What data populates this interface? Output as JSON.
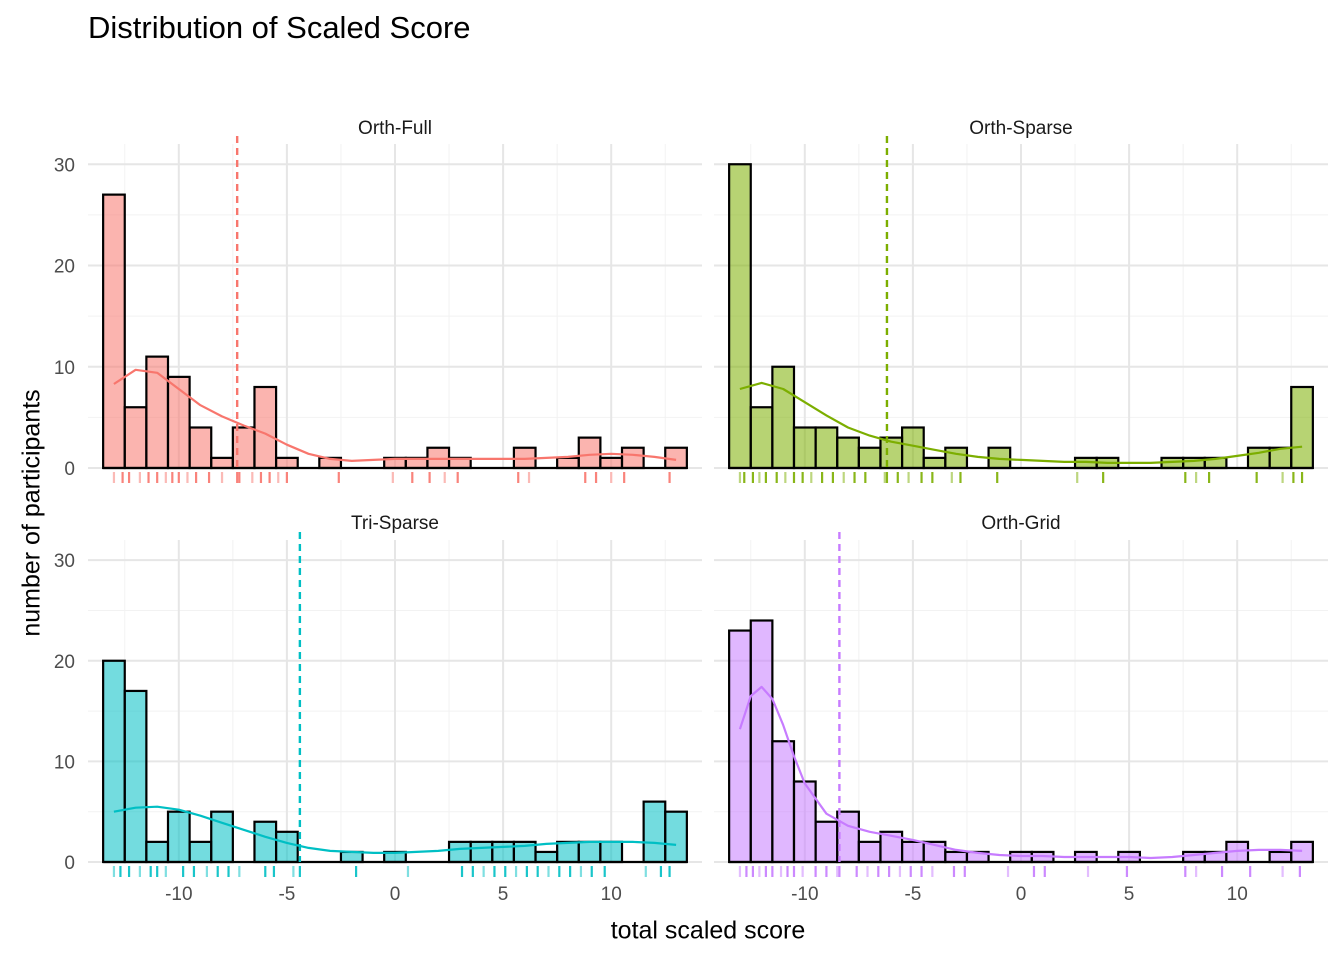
{
  "chart_data": {
    "type": "bar",
    "title": "Distribution of Scaled Score",
    "xlabel": "total scaled score",
    "ylabel": "number of participants",
    "xlim": [
      -14,
      14
    ],
    "ylim": [
      0,
      32
    ],
    "x_ticks": [
      -10,
      -5,
      0,
      5,
      10
    ],
    "x_tick_labels": [
      "-10",
      "-5",
      "0",
      "5",
      "10"
    ],
    "y_ticks": [
      0,
      10,
      20,
      30
    ],
    "y_tick_labels": [
      "0",
      "10",
      "20",
      "30"
    ],
    "bin_centers": [
      -13,
      -12,
      -11,
      -10,
      -9,
      -8,
      -7,
      -6,
      -5,
      -4,
      -3,
      -2,
      -1,
      0,
      1,
      2,
      3,
      4,
      5,
      6,
      7,
      8,
      9,
      10,
      11,
      12,
      13
    ],
    "grid": true,
    "panels": [
      {
        "name": "Orth-Full",
        "color": "#F8766D",
        "mean": -7.3,
        "counts": [
          27,
          6,
          11,
          9,
          4,
          1,
          4,
          8,
          1,
          0,
          1,
          0,
          0,
          1,
          1,
          2,
          1,
          0,
          0,
          2,
          0,
          1,
          3,
          1,
          2,
          0,
          2
        ],
        "density": [
          [
            -13,
            8.3
          ],
          [
            -12,
            9.7
          ],
          [
            -11,
            9.4
          ],
          [
            -10,
            7.8
          ],
          [
            -9,
            6.2
          ],
          [
            -8,
            5.1
          ],
          [
            -7,
            4.2
          ],
          [
            -6,
            3.4
          ],
          [
            -5,
            2.3
          ],
          [
            -4,
            1.4
          ],
          [
            -3,
            0.9
          ],
          [
            -2,
            0.7
          ],
          [
            -1,
            0.8
          ],
          [
            0,
            0.9
          ],
          [
            1,
            0.9
          ],
          [
            2,
            0.9
          ],
          [
            3,
            0.9
          ],
          [
            4,
            0.9
          ],
          [
            5,
            0.9
          ],
          [
            6,
            0.9
          ],
          [
            7,
            1.0
          ],
          [
            8,
            1.1
          ],
          [
            9,
            1.3
          ],
          [
            10,
            1.4
          ],
          [
            11,
            1.3
          ],
          [
            12,
            1.1
          ],
          [
            13,
            0.8
          ]
        ],
        "rug": [
          -13,
          -12.6,
          -12.3,
          -11.8,
          -11.4,
          -11.0,
          -10.6,
          -10.3,
          -10.0,
          -9.6,
          -9.2,
          -8.6,
          -8.0,
          -7.3,
          -7.2,
          -6.6,
          -6.2,
          -5.8,
          -5.4,
          -5.0,
          -2.6,
          -0.1,
          0.8,
          1.6,
          2.3,
          2.9,
          5.7,
          6.2,
          8.8,
          9.3,
          10.0,
          10.6,
          12.7
        ]
      },
      {
        "name": "Orth-Sparse",
        "color": "#7CAE00",
        "mean": -6.2,
        "counts": [
          30,
          6,
          10,
          4,
          4,
          3,
          2,
          3,
          4,
          1,
          2,
          0,
          2,
          0,
          0,
          0,
          1,
          1,
          0,
          0,
          1,
          1,
          1,
          0,
          2,
          2,
          8
        ],
        "density": [
          [
            -13,
            7.8
          ],
          [
            -12,
            8.4
          ],
          [
            -11,
            7.8
          ],
          [
            -10,
            6.5
          ],
          [
            -9,
            5.2
          ],
          [
            -8,
            4.0
          ],
          [
            -7,
            3.2
          ],
          [
            -6,
            2.6
          ],
          [
            -5,
            2.2
          ],
          [
            -4,
            1.8
          ],
          [
            -3,
            1.4
          ],
          [
            -2,
            1.1
          ],
          [
            -1,
            0.9
          ],
          [
            0,
            0.8
          ],
          [
            1,
            0.7
          ],
          [
            2,
            0.6
          ],
          [
            3,
            0.6
          ],
          [
            4,
            0.5
          ],
          [
            5,
            0.5
          ],
          [
            6,
            0.5
          ],
          [
            7,
            0.6
          ],
          [
            8,
            0.7
          ],
          [
            9,
            0.9
          ],
          [
            10,
            1.2
          ],
          [
            11,
            1.5
          ],
          [
            12,
            1.9
          ],
          [
            13,
            2.1
          ]
        ],
        "rug": [
          -13,
          -12.8,
          -12.4,
          -12.1,
          -11.8,
          -11.3,
          -10.9,
          -10.5,
          -10.1,
          -9.7,
          -9.2,
          -8.7,
          -8.2,
          -7.7,
          -7.2,
          -6.3,
          -6.2,
          -5.7,
          -5.2,
          -4.6,
          -4.1,
          -3.2,
          -2.8,
          -1.1,
          2.6,
          3.8,
          7.6,
          8.1,
          8.7,
          10.9,
          12.1,
          12.6,
          13.0
        ]
      },
      {
        "name": "Tri-Sparse",
        "color": "#00BFC4",
        "mean": -4.4,
        "counts": [
          20,
          17,
          2,
          5,
          2,
          5,
          0,
          4,
          3,
          0,
          0,
          1,
          0,
          1,
          0,
          0,
          2,
          2,
          2,
          2,
          1,
          2,
          2,
          2,
          0,
          6,
          5
        ],
        "density": [
          [
            -13,
            5.0
          ],
          [
            -12,
            5.4
          ],
          [
            -11,
            5.5
          ],
          [
            -10,
            5.2
          ],
          [
            -9,
            4.6
          ],
          [
            -8,
            3.9
          ],
          [
            -7,
            3.2
          ],
          [
            -6,
            2.5
          ],
          [
            -5,
            1.9
          ],
          [
            -4,
            1.4
          ],
          [
            -3,
            1.1
          ],
          [
            -2,
            1.0
          ],
          [
            -1,
            0.9
          ],
          [
            0,
            0.9
          ],
          [
            1,
            1.0
          ],
          [
            2,
            1.1
          ],
          [
            3,
            1.3
          ],
          [
            4,
            1.4
          ],
          [
            5,
            1.5
          ],
          [
            6,
            1.6
          ],
          [
            7,
            1.8
          ],
          [
            8,
            1.9
          ],
          [
            9,
            2.0
          ],
          [
            10,
            2.0
          ],
          [
            11,
            2.0
          ],
          [
            12,
            1.9
          ],
          [
            13,
            1.7
          ]
        ],
        "rug": [
          -13,
          -12.7,
          -12.3,
          -11.8,
          -11.3,
          -11.0,
          -10.6,
          -9.8,
          -9.3,
          -8.7,
          -8.2,
          -7.7,
          -7.2,
          -6.0,
          -5.6,
          -4.7,
          -4.4,
          -1.8,
          0.6,
          3.1,
          3.6,
          4.1,
          4.6,
          5.1,
          5.6,
          6.1,
          6.6,
          7.1,
          7.6,
          8.1,
          8.6,
          9.1,
          9.7,
          11.6,
          12.3,
          12.7
        ]
      },
      {
        "name": "Orth-Grid",
        "color": "#C77CFF",
        "mean": -8.4,
        "counts": [
          23,
          24,
          12,
          8,
          4,
          5,
          2,
          3,
          2,
          2,
          1,
          1,
          0,
          1,
          1,
          0,
          1,
          0,
          1,
          0,
          0,
          1,
          1,
          2,
          0,
          1,
          2
        ],
        "density": [
          [
            -13,
            13.2
          ],
          [
            -12.5,
            16.5
          ],
          [
            -12,
            17.4
          ],
          [
            -11.5,
            16.2
          ],
          [
            -11,
            13.6
          ],
          [
            -10.5,
            10.5
          ],
          [
            -10,
            7.8
          ],
          [
            -9,
            4.8
          ],
          [
            -8,
            3.6
          ],
          [
            -7,
            3.0
          ],
          [
            -6,
            2.6
          ],
          [
            -5,
            2.2
          ],
          [
            -4,
            1.7
          ],
          [
            -3,
            1.2
          ],
          [
            -2,
            0.9
          ],
          [
            -1,
            0.7
          ],
          [
            0,
            0.6
          ],
          [
            1,
            0.6
          ],
          [
            2,
            0.5
          ],
          [
            3,
            0.5
          ],
          [
            4,
            0.5
          ],
          [
            5,
            0.5
          ],
          [
            6,
            0.4
          ],
          [
            7,
            0.5
          ],
          [
            8,
            0.7
          ],
          [
            9,
            0.9
          ],
          [
            10,
            1.1
          ],
          [
            11,
            1.2
          ],
          [
            12,
            1.2
          ],
          [
            13,
            1.1
          ]
        ],
        "rug": [
          -13,
          -12.7,
          -12.4,
          -12.1,
          -11.8,
          -11.5,
          -11.1,
          -10.8,
          -10.5,
          -10.1,
          -9.5,
          -9.0,
          -8.5,
          -8.4,
          -7.6,
          -7.1,
          -6.6,
          -6.1,
          -5.6,
          -5.1,
          -4.6,
          -4.1,
          -3.1,
          -2.6,
          -0.6,
          0.6,
          1.1,
          3.1,
          4.9,
          7.6,
          8.1,
          9.3,
          10.6,
          12.1,
          12.9
        ]
      }
    ]
  }
}
